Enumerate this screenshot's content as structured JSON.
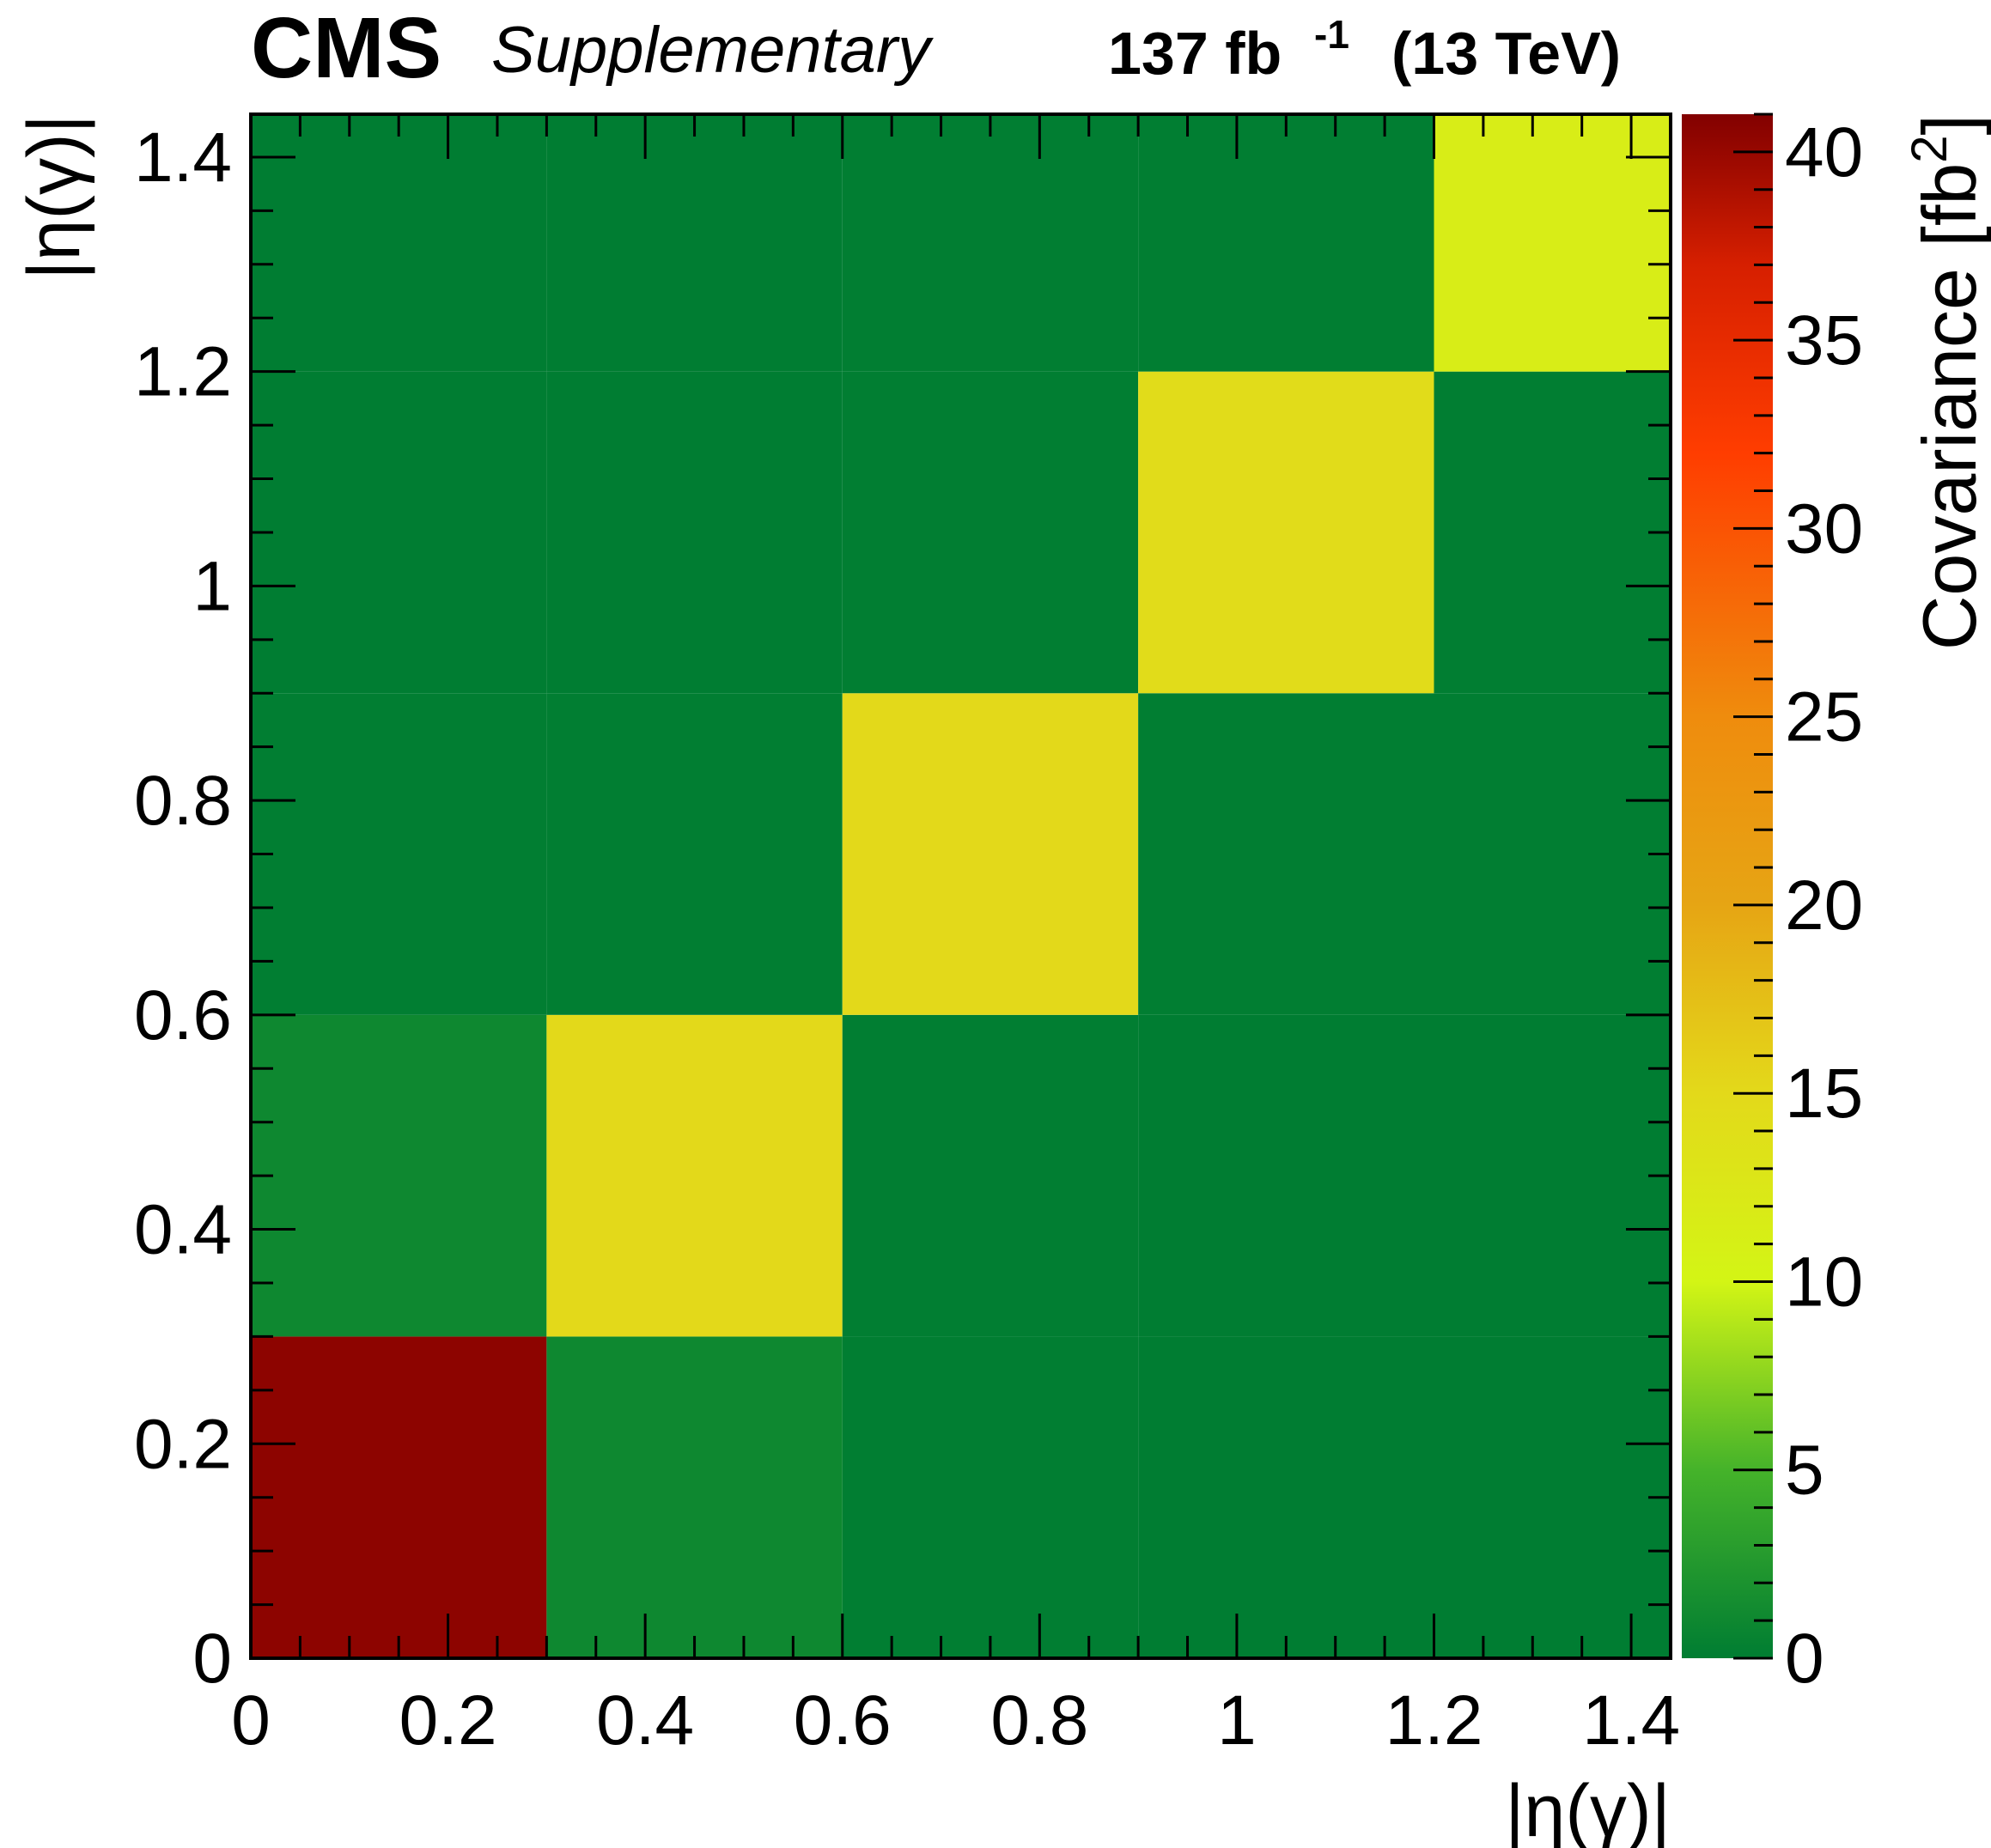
{
  "header": {
    "experiment": "CMS",
    "label": "Supplementary",
    "lumi": "137 fb",
    "lumi_exp": "-1",
    "energy": "(13 TeV)"
  },
  "chart_data": {
    "type": "heatmap",
    "xlabel": "|η(γ)|",
    "ylabel": "|η(γ)|",
    "x_edges": [
      0,
      0.3,
      0.6,
      0.9,
      1.2,
      1.44
    ],
    "y_edges": [
      0,
      0.3,
      0.6,
      0.9,
      1.2,
      1.44
    ],
    "xlim": [
      0,
      1.44
    ],
    "ylim": [
      0,
      1.44
    ],
    "xticks": [
      0,
      0.2,
      0.4,
      0.6,
      0.8,
      1,
      1.2,
      1.4
    ],
    "yticks": [
      0,
      0.2,
      0.4,
      0.6,
      0.8,
      1,
      1.2,
      1.4
    ],
    "xtick_labels": [
      "0",
      "0.2",
      "0.4",
      "0.6",
      "0.8",
      "1",
      "1.2",
      "1.4"
    ],
    "ytick_labels": [
      "0",
      "0.2",
      "0.4",
      "0.6",
      "0.8",
      "1",
      "1.2",
      "1.4"
    ],
    "values": [
      [
        40.5,
        1.0,
        0.1,
        0.0,
        0.0
      ],
      [
        1.0,
        15.0,
        0.1,
        0.0,
        0.0
      ],
      [
        0.1,
        0.1,
        15.0,
        0.1,
        0.1
      ],
      [
        0.0,
        0.0,
        0.1,
        14.5,
        0.1
      ],
      [
        0.0,
        0.0,
        0.1,
        0.1,
        11.5
      ]
    ],
    "colorbar": {
      "label": "Covariance [fb",
      "label_exp": "2",
      "label_close": "]",
      "min": 0,
      "max": 41,
      "ticks": [
        0,
        5,
        10,
        15,
        20,
        25,
        30,
        35,
        40
      ],
      "tick_labels": [
        "0",
        "5",
        "10",
        "15",
        "20",
        "25",
        "30",
        "35",
        "40"
      ],
      "stops": [
        {
          "v": 0,
          "color": "#007d32"
        },
        {
          "v": 5,
          "color": "#45b32a"
        },
        {
          "v": 10,
          "color": "#d3f515"
        },
        {
          "v": 15,
          "color": "#e3d91a"
        },
        {
          "v": 20,
          "color": "#e6a514"
        },
        {
          "v": 25,
          "color": "#ef8c0d"
        },
        {
          "v": 32,
          "color": "#ff3d00"
        },
        {
          "v": 37,
          "color": "#d61f00"
        },
        {
          "v": 41,
          "color": "#820000"
        }
      ]
    }
  }
}
